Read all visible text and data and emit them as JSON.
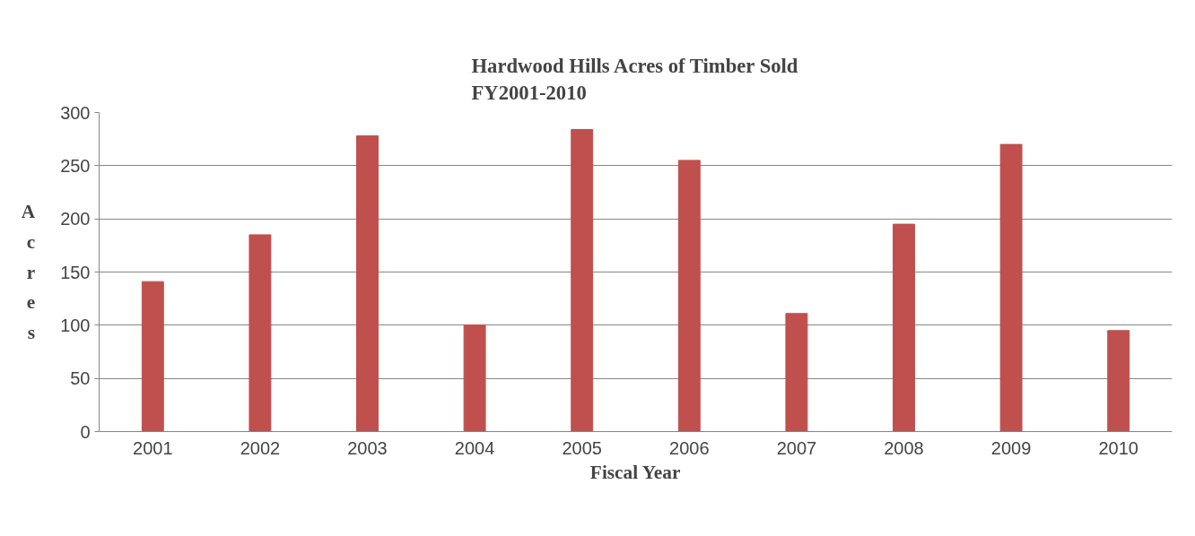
{
  "chart_data": {
    "type": "bar",
    "title": "Hardwood Hills Acres of Timber Sold\nFY2001-2010",
    "xlabel": "Fiscal Year",
    "ylabel": "Acres",
    "categories": [
      "2001",
      "2002",
      "2003",
      "2004",
      "2005",
      "2006",
      "2007",
      "2008",
      "2009",
      "2010"
    ],
    "values": [
      141,
      185,
      278,
      100,
      284,
      255,
      111,
      195,
      270,
      95
    ],
    "color": "#c0504d",
    "ylim": [
      0,
      300
    ],
    "yticks": [
      0,
      50,
      100,
      150,
      200,
      250,
      300
    ],
    "grid": "y"
  }
}
